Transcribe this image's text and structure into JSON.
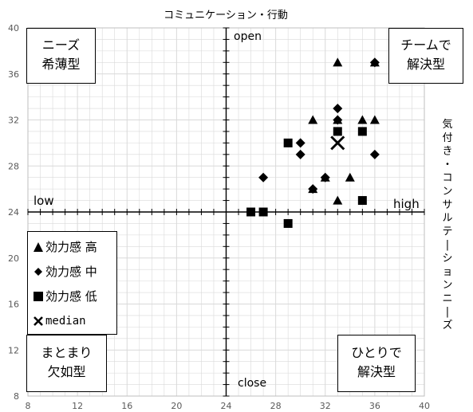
{
  "chart_data": {
    "type": "scatter",
    "title": "コミュニケーション・行動",
    "ylabel": "気付き・コンサルテーションニーズ",
    "xlim": [
      8,
      40
    ],
    "ylim": [
      8,
      40
    ],
    "x_ticks": [
      "8",
      "12",
      "16",
      "20",
      "24",
      "28",
      "32",
      "36",
      "40"
    ],
    "y_ticks": [
      "8",
      "12",
      "16",
      "20",
      "24",
      "28",
      "32",
      "36",
      "40"
    ],
    "center": {
      "x": 24,
      "y": 24
    },
    "grid": true,
    "axis_labels": {
      "low": "low",
      "high": "high",
      "open": "open",
      "close": "close"
    },
    "quadrants": {
      "top_left": [
        "ニーズ",
        "希薄型"
      ],
      "top_right": [
        "チームで",
        "解決型"
      ],
      "bottom_left": [
        "まとまり",
        "欠如型"
      ],
      "bottom_right": [
        "ひとりで",
        "解決型"
      ]
    },
    "legend_position": "left-middle",
    "series": [
      {
        "name": "効力感 高",
        "marker": "triangle",
        "points": [
          [
            33,
            37
          ],
          [
            36,
            37
          ],
          [
            31,
            32
          ],
          [
            33,
            32
          ],
          [
            35,
            32
          ],
          [
            36,
            32
          ],
          [
            32,
            27
          ],
          [
            34,
            27
          ],
          [
            31,
            26
          ],
          [
            33,
            25
          ]
        ]
      },
      {
        "name": "効力感 中",
        "marker": "diamond",
        "points": [
          [
            36,
            37
          ],
          [
            33,
            33
          ],
          [
            33,
            32
          ],
          [
            30,
            30
          ],
          [
            30,
            29
          ],
          [
            36,
            29
          ],
          [
            27,
            27
          ],
          [
            32,
            27
          ],
          [
            31,
            26
          ]
        ]
      },
      {
        "name": "効力感 低",
        "marker": "square",
        "points": [
          [
            29,
            30
          ],
          [
            33,
            31
          ],
          [
            35,
            31
          ],
          [
            26,
            24
          ],
          [
            27,
            24
          ],
          [
            35,
            25
          ],
          [
            29,
            23
          ]
        ]
      },
      {
        "name": "median",
        "marker": "x",
        "points": [
          [
            33,
            30
          ]
        ]
      }
    ]
  },
  "colors": {
    "marker": "#000000",
    "grid": "#d9d9d9",
    "axis": "#000000"
  }
}
